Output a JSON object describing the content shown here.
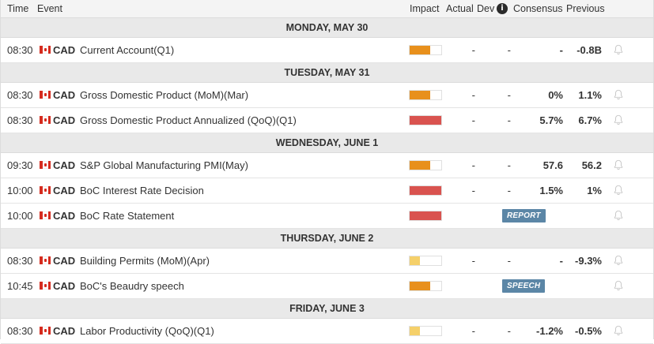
{
  "header": {
    "time": "Time",
    "event": "Event",
    "impact": "Impact",
    "actual": "Actual",
    "dev": "Dev",
    "info_icon": "i",
    "consensus": "Consensus",
    "previous": "Previous"
  },
  "colors": {
    "impact_high": "#d9534f",
    "impact_medium": "#e8901c",
    "impact_low": "#f5d06a",
    "tag_bg": "#5b86a6"
  },
  "days": [
    {
      "label": "MONDAY, MAY 30",
      "events": [
        {
          "time": "08:30",
          "currency": "CAD",
          "name": "Current Account(Q1)",
          "impact": "medium",
          "impact_level": 0.66,
          "actual": "-",
          "dev": "-",
          "consensus": "-",
          "previous": "-0.8B"
        }
      ]
    },
    {
      "label": "TUESDAY, MAY 31",
      "events": [
        {
          "time": "08:30",
          "currency": "CAD",
          "name": "Gross Domestic Product (MoM)(Mar)",
          "impact": "medium",
          "impact_level": 0.66,
          "actual": "-",
          "dev": "-",
          "consensus": "0%",
          "previous": "1.1%"
        },
        {
          "time": "08:30",
          "currency": "CAD",
          "name": "Gross Domestic Product Annualized (QoQ)(Q1)",
          "impact": "high",
          "impact_level": 1.0,
          "actual": "-",
          "dev": "-",
          "consensus": "5.7%",
          "previous": "6.7%"
        }
      ]
    },
    {
      "label": "WEDNESDAY, JUNE 1",
      "events": [
        {
          "time": "09:30",
          "currency": "CAD",
          "name": "S&P Global Manufacturing PMI(May)",
          "impact": "medium",
          "impact_level": 0.66,
          "actual": "-",
          "dev": "-",
          "consensus": "57.6",
          "previous": "56.2"
        },
        {
          "time": "10:00",
          "currency": "CAD",
          "name": "BoC Interest Rate Decision",
          "impact": "high",
          "impact_level": 1.0,
          "actual": "-",
          "dev": "-",
          "consensus": "1.5%",
          "previous": "1%"
        },
        {
          "time": "10:00",
          "currency": "CAD",
          "name": "BoC Rate Statement",
          "impact": "high",
          "impact_level": 1.0,
          "tag": "REPORT"
        }
      ]
    },
    {
      "label": "THURSDAY, JUNE 2",
      "events": [
        {
          "time": "08:30",
          "currency": "CAD",
          "name": "Building Permits (MoM)(Apr)",
          "impact": "low",
          "impact_level": 0.33,
          "actual": "-",
          "dev": "-",
          "consensus": "-",
          "previous": "-9.3%"
        },
        {
          "time": "10:45",
          "currency": "CAD",
          "name": "BoC's Beaudry speech",
          "impact": "medium",
          "impact_level": 0.66,
          "tag": "SPEECH"
        }
      ]
    },
    {
      "label": "FRIDAY, JUNE 3",
      "events": [
        {
          "time": "08:30",
          "currency": "CAD",
          "name": "Labor Productivity (QoQ)(Q1)",
          "impact": "low",
          "impact_level": 0.33,
          "actual": "-",
          "dev": "-",
          "consensus": "-1.2%",
          "previous": "-0.5%"
        }
      ]
    }
  ]
}
